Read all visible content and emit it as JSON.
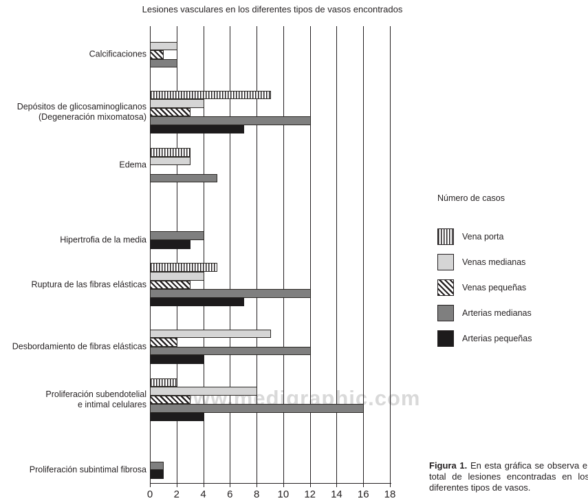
{
  "title": "Lesiones vasculares en los diferentes tipos de vasos encontrados",
  "watermark": "www.medigraphic.com",
  "legend": {
    "title": "Número de casos",
    "items": [
      {
        "label": "Vena porta",
        "pattern": "vstripes"
      },
      {
        "label": "Venas medianas",
        "pattern": "light"
      },
      {
        "label": "Venas pequeñas",
        "pattern": "diag"
      },
      {
        "label": "Arterias medianas",
        "pattern": "mid"
      },
      {
        "label": "Arterias pequeñas",
        "pattern": "black"
      }
    ]
  },
  "caption": {
    "label": "Figura 1.",
    "text": "En esta gráfica se observa el total de lesiones encontradas en los diferentes tipos de vasos."
  },
  "colors": {
    "light_gray": "#d5d5d5",
    "mid_gray": "#7f7f7f",
    "black": "#1d1b1c",
    "line": "#231f20",
    "watermark_gray": "#d9d9d9"
  },
  "chart_data": {
    "type": "bar",
    "orientation": "horizontal",
    "title": "Lesiones vasculares en los diferentes tipos de vasos encontrados",
    "xlabel": "",
    "ylabel": "",
    "xlim": [
      0,
      18
    ],
    "x_ticks": [
      0,
      2,
      4,
      6,
      8,
      10,
      12,
      14,
      16,
      18
    ],
    "grid": true,
    "legend_position": "right",
    "categories": [
      "Calcificaciones",
      "Depósitos de glicosaminoglicanos\n(Degeneración mixomatosa)",
      "Edema",
      "Hipertrofia de la media",
      "Ruptura de las fibras elásticas",
      "Desbordamiento de fibras elásticas",
      "Proliferación subendotelial\ne intimal celulares",
      "Proliferación subintimal fibrosa"
    ],
    "series": [
      {
        "name": "Vena porta",
        "values": [
          0,
          9,
          3,
          0,
          5,
          0,
          2,
          0
        ]
      },
      {
        "name": "Venas medianas",
        "values": [
          2,
          4,
          3,
          0,
          4,
          9,
          8,
          0
        ]
      },
      {
        "name": "Venas pequeñas",
        "values": [
          1,
          3,
          0,
          0,
          3,
          2,
          3,
          0
        ]
      },
      {
        "name": "Arterias medianas",
        "values": [
          2,
          12,
          5,
          4,
          12,
          12,
          16,
          1
        ]
      },
      {
        "name": "Arterias pequeñas",
        "values": [
          0,
          7,
          0,
          3,
          7,
          4,
          4,
          1
        ]
      }
    ]
  }
}
